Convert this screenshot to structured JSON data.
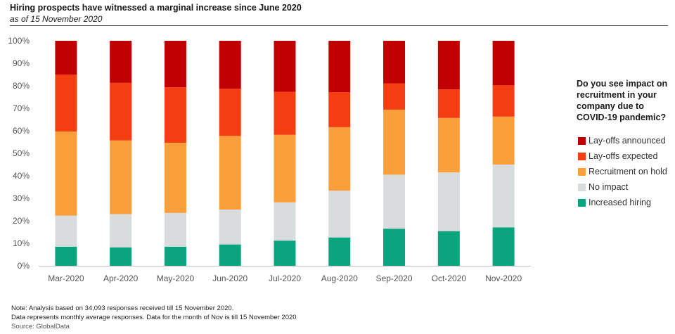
{
  "title": "Hiring prospects have witnessed a marginal increase since June 2020",
  "subtitle": "as of 15 November 2020",
  "legend_title": "Do you see impact on recruitment in your company due to COVID-19 pandemic?",
  "notes": [
    "Note: Analysis based on 34,093 responses received till 15 November 2020.",
    "Data represents monthly average responses. Data for the month of Nov is till 15 November 2020"
  ],
  "source": "Source: GlobalData",
  "chart_data": {
    "type": "bar",
    "stacked": true,
    "percent": true,
    "ylim": [
      0,
      100
    ],
    "y_ticks": [
      "0%",
      "10%",
      "20%",
      "30%",
      "40%",
      "50%",
      "60%",
      "70%",
      "80%",
      "90%",
      "100%"
    ],
    "categories": [
      "Mar-2020",
      "Apr-2020",
      "May-2020",
      "Jun-2020",
      "Jul-2020",
      "Aug-2020",
      "Sep-2020",
      "Oct-2020",
      "Nov-2020"
    ],
    "legend_position": "right",
    "series": [
      {
        "name": "Increased hiring",
        "color": "#0aa57f",
        "values": [
          8.5,
          8.2,
          8.5,
          9.5,
          11.2,
          12.6,
          16.5,
          15.4,
          17.1
        ]
      },
      {
        "name": "No impact",
        "color": "#d9dcdd",
        "values": [
          13.8,
          14.8,
          15.0,
          15.5,
          17.0,
          20.8,
          24.0,
          26.1,
          27.9
        ]
      },
      {
        "name": "Recruitment on hold",
        "color": "#fb9f3a",
        "values": [
          37.4,
          32.7,
          31.2,
          32.7,
          30.0,
          28.2,
          28.9,
          24.2,
          21.3
        ]
      },
      {
        "name": "Lay-offs expected",
        "color": "#f43e12",
        "values": [
          25.3,
          25.6,
          24.6,
          21.0,
          19.1,
          15.5,
          11.7,
          12.7,
          13.9
        ]
      },
      {
        "name": "Lay-offs announced",
        "color": "#c00000",
        "values": [
          15.0,
          18.7,
          20.7,
          21.3,
          22.7,
          22.9,
          18.9,
          21.6,
          19.8
        ]
      }
    ]
  }
}
